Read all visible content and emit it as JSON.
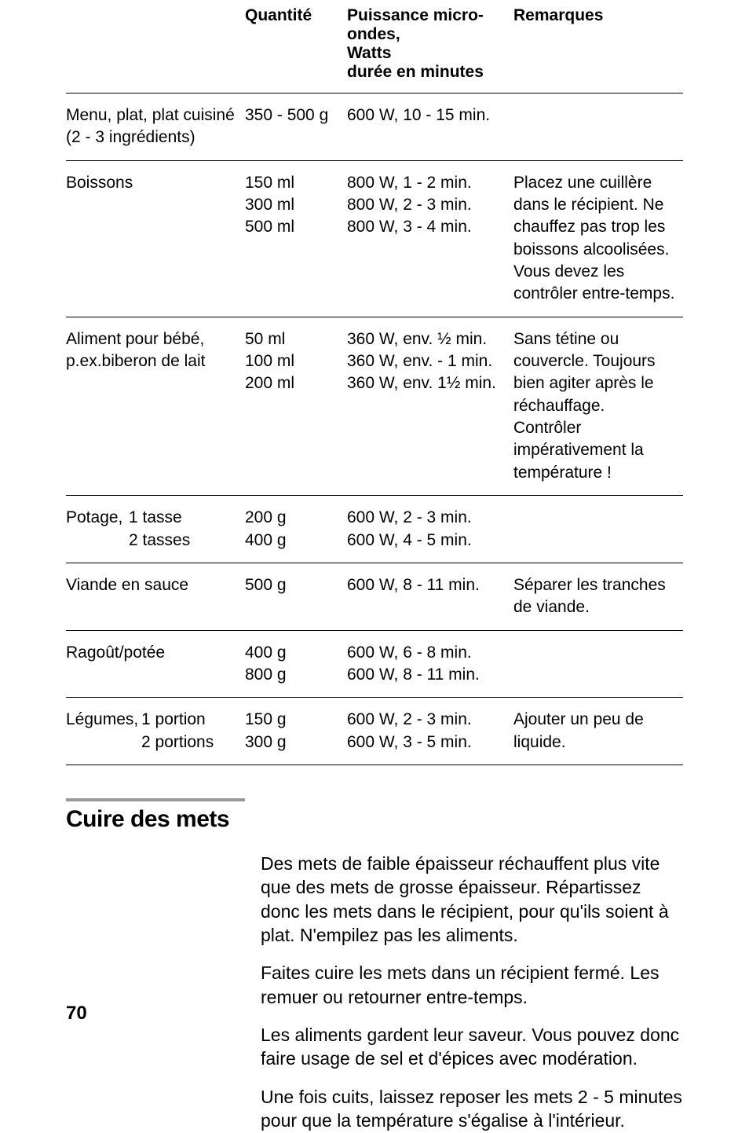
{
  "colors": {
    "text": "#000000",
    "background": "#ffffff",
    "rule": "#999999",
    "border": "#000000"
  },
  "typography": {
    "body_fontsize_pt": 21,
    "heading_fontsize_pt": 30,
    "prose_fontsize_pt": 23,
    "page_num_fontsize_pt": 24
  },
  "table": {
    "headers": {
      "c1": "",
      "c2": "Quantité",
      "c3": "Puissance micro-ondes,\nWatts\ndurée en minutes",
      "c4": "Remarques"
    },
    "rows": [
      {
        "c1": "Menu, plat, plat cuisiné\n(2 - 3 ingrédients)",
        "c2": "350 - 500 g",
        "c3": "600 W, 10 - 15 min.",
        "c4": ""
      },
      {
        "c1": "Boissons",
        "c2": "150 ml\n300 ml\n500 ml",
        "c3": "800 W, 1 - 2 min.\n800 W, 2 - 3 min.\n800 W, 3 - 4 min.",
        "c4": "Placez une cuillère dans le récipient. Ne chauffez pas trop les boissons alcoolisées. Vous devez les contrôler entre-temps."
      },
      {
        "c1": "Aliment pour bébé,\np.ex.biberon de lait",
        "c2": "50 ml\n100 ml\n200 ml",
        "c3": "360 W, env. ½ min.\n360 W, env. - 1 min.\n360 W, env. 1½ min.",
        "c4": "Sans tétine ou couvercle. Toujours bien agiter après le réchauffage. Contrôler impérativement la température !"
      },
      {
        "c1_label": "Potage,",
        "c1_sub": "1 tasse\n2 tasses",
        "c2": "200 g\n400 g",
        "c3": "600 W, 2 - 3 min.\n600 W, 4 - 5 min.",
        "c4": ""
      },
      {
        "c1": "Viande en sauce",
        "c2": "500 g",
        "c3": "600 W, 8 - 11 min.",
        "c4": "Séparer les tranches de viande."
      },
      {
        "c1": "Ragoût/potée",
        "c2": "400 g\n800 g",
        "c3": "600 W, 6 - 8 min.\n600 W, 8 - 11 min.",
        "c4": ""
      },
      {
        "c1_label": "Légumes,",
        "c1_sub": "1 portion\n2 portions",
        "c2": "150 g\n300 g",
        "c3": "600 W, 2 - 3 min.\n600 W, 3 - 5 min.",
        "c4": "Ajouter un peu de liquide."
      }
    ]
  },
  "section": {
    "title": "Cuire des mets",
    "paragraphs": [
      "Des mets de faible épaisseur réchauffent plus vite que des mets de grosse épaisseur. Répartissez donc les mets dans le récipient, pour qu'ils soient à plat. N'empilez pas les aliments.",
      "Faites cuire les mets dans un récipient fermé. Les remuer ou retourner entre-temps.",
      "Les aliments gardent leur saveur. Vous pouvez donc faire usage de sel et d'épices avec modération.",
      "Une fois cuits, laissez reposer les mets 2 - 5 minutes pour que la température s'égalise à l'intérieur."
    ]
  },
  "page_number": "70"
}
